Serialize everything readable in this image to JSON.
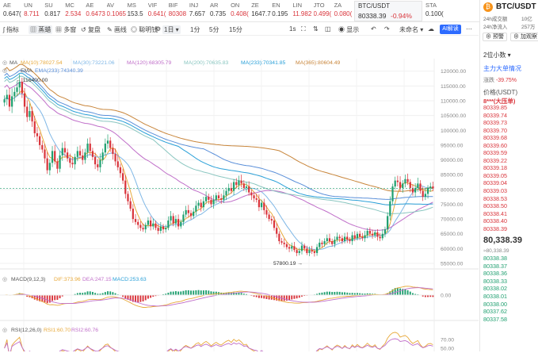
{
  "ticker": [
    {
      "name": "AE",
      "value": "0.647(",
      "dir": "down"
    },
    {
      "name": "UN",
      "value": "8.711",
      "dir": "up"
    },
    {
      "name": "SU",
      "value": "0.817",
      "dir": "down"
    },
    {
      "name": "MC",
      "value": "2.534",
      "dir": "up"
    },
    {
      "name": "AE",
      "value": "0.6473",
      "dir": "up"
    },
    {
      "name": "AV",
      "value": "0.1065",
      "dir": "up"
    },
    {
      "name": "MS",
      "value": "153.5",
      "dir": "down"
    },
    {
      "name": "VIF",
      "value": "0.641(",
      "dir": "up"
    },
    {
      "name": "BIF",
      "value": "80308",
      "dir": "up"
    },
    {
      "name": "INJ",
      "value": "7.657",
      "dir": "down"
    },
    {
      "name": "AR",
      "value": "0.735",
      "dir": "down"
    },
    {
      "name": "ON",
      "value": "0.408(",
      "dir": "up"
    },
    {
      "name": "ZE",
      "value": "1647.7",
      "dir": "down"
    },
    {
      "name": "EN",
      "value": "0.195",
      "dir": "down"
    },
    {
      "name": "LIN",
      "value": "11.982",
      "dir": "up"
    },
    {
      "name": "JTO",
      "value": "0.499(",
      "dir": "up"
    },
    {
      "name": "ZA",
      "value": "0.080(",
      "dir": "up"
    }
  ],
  "btc_cell": {
    "name": "BTC/USDT",
    "price": "80338.39",
    "change": "-0.94%"
  },
  "ticker_tail": {
    "name": "STA",
    "value": "0.100("
  },
  "toolbar": {
    "indicator": "指标",
    "candle": "蒸蜡",
    "multi": "多窗",
    "replay": "复盘",
    "draw": "画线",
    "bubble": "聪明钱",
    "tf_1d": "1日",
    "tf_1m": "1分",
    "tf_5m": "5分",
    "tf_15m": "15分",
    "tf_1s": "1s",
    "show": "显示",
    "preset": "未命名",
    "ai": "AI解读"
  },
  "right_panel": {
    "pair": "BTC/USDT",
    "vol_label": "24h成交额",
    "vol_value": "10亿",
    "net_label": "24h净流入",
    "net_value": "257万",
    "btn_alert": "预警",
    "btn_fav": "加观察",
    "precision": "2位小数",
    "section": "主力大单情况",
    "change_label": "涨跌",
    "change_value": "-39.75%",
    "price_header": "价格(USDT)",
    "big_order": "8***(大压单)",
    "prices_top": [
      "80339.85",
      "80339.74",
      "80339.73",
      "80339.70",
      "80339.68",
      "80339.60",
      "80339.59",
      "80339.22",
      "80339.18",
      "80339.05",
      "80339.04",
      "80339.03",
      "80338.53",
      "80338.50",
      "80338.41",
      "80338.40",
      "80338.39"
    ],
    "current": "80,338.39",
    "current_sub": "≈80,338.39",
    "prices_bottom": [
      "80338.38",
      "80338.37",
      "80338.36",
      "80338.33",
      "80338.02",
      "80338.01",
      "80338.00",
      "80337.62",
      "80337.58"
    ]
  },
  "ma_legend": {
    "ma_title": "MA",
    "ma10": "MA(10):78027.54",
    "ma30": "MA(30):73221.06",
    "ma120": "MA(120):68305.79",
    "ma200": "MA(200):70635.83",
    "ma233": "MA(233):70341.85",
    "ma365": "MA(365):80604.49",
    "ema_title": "EMA",
    "ema233": "EMA(233):74340.39",
    "colors": {
      "ma10": "#e8a93a",
      "ma30": "#7fb7e6",
      "ma120": "#c06fc9",
      "ma200": "#8ac6c0",
      "ma233": "#2aa0d8",
      "ma365": "#c8853a",
      "ema233": "#5a8fd9"
    }
  },
  "price_axis": [
    "120000.00",
    "115000.00",
    "110000.00",
    "105000.00",
    "100000.00",
    "95000.00",
    "90000.00",
    "85000.00",
    "80000.00",
    "75000.00",
    "70000.00",
    "65000.00",
    "60000.00",
    "55000.00"
  ],
  "markers": {
    "high": "116400.00",
    "low": "57800.19"
  },
  "macd": {
    "title": "MACD(9,12,3)",
    "dif": "DIF:373.96",
    "dea": "DEA:247.15",
    "macd": "MACD:253.63",
    "axis": "0.00",
    "colors": {
      "dif": "#e8a93a",
      "dea": "#c06fc9",
      "macd": "#2aa0d8"
    }
  },
  "rsi": {
    "title": "RSI(12,26,0)",
    "rsi1": "RSI1:60.70",
    "rsi2": "RSI2:60.76",
    "axis_top": "70.00",
    "axis_bottom": "50.00"
  },
  "chart_data": {
    "type": "candlestick",
    "symbol": "BTC/USDT",
    "interval": "1日",
    "ylim": [
      55000,
      121000
    ],
    "high": 116400.0,
    "low": 57800.19,
    "last": 80338.39,
    "closes": [
      110500,
      112000,
      108000,
      111500,
      113000,
      114500,
      116400,
      112500,
      108000,
      104500,
      106500,
      103000,
      99000,
      98000,
      95000,
      93500,
      90500,
      86500,
      89000,
      93000,
      89500,
      87000,
      91500,
      94000,
      92500,
      90500,
      89000,
      88500,
      91000,
      93000,
      91500,
      90000,
      92500,
      95500,
      93000,
      91000,
      88500,
      87500,
      90000,
      92500,
      95500,
      96500,
      94000,
      92000,
      89500,
      87500,
      85500,
      83000,
      78500,
      76000,
      73500,
      70000,
      69000,
      68000,
      67000,
      66500,
      68000,
      69500,
      67500,
      68500,
      67000,
      66000,
      67500,
      66500,
      67000,
      69500,
      71000,
      68500,
      70000,
      67500,
      69000,
      71500,
      73000,
      72000,
      71000,
      72500,
      74500,
      75500,
      74000,
      76000,
      77500,
      76500,
      75000,
      76500,
      78000,
      77000,
      76500,
      78000,
      79500,
      80500,
      79500,
      82500,
      81500,
      83000,
      82000,
      80500,
      81000,
      79000,
      78000,
      77000,
      76500,
      74000,
      75500,
      73000,
      71500,
      70000,
      69500,
      67000,
      65000,
      62500,
      62000,
      61500,
      60500,
      60000,
      60800,
      59500,
      58500,
      59200,
      61000,
      60000,
      58500,
      59500,
      59000,
      58500,
      60500,
      62000,
      61500,
      62500,
      63500,
      62500,
      61500,
      63000,
      64000,
      63500,
      62500,
      64000,
      63000,
      62500,
      64500,
      63500,
      65000,
      64000,
      63500,
      64500,
      66000,
      65000,
      64500,
      65500,
      64000,
      63500,
      65000,
      66500,
      71000,
      76000,
      81000,
      83000,
      82500,
      80500,
      82000,
      83500,
      82500,
      80500,
      79000,
      80500,
      82000,
      79500,
      77500,
      78500,
      80500,
      81000,
      80338
    ]
  }
}
